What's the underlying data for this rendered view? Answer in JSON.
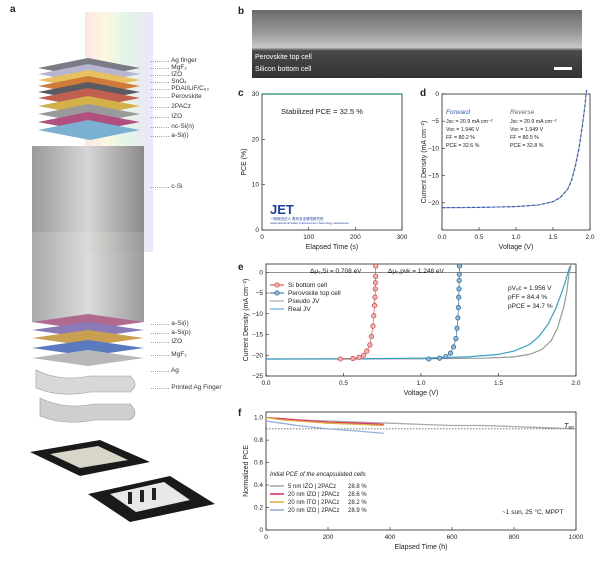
{
  "panel_letters": {
    "a": "a",
    "b": "b",
    "c": "c",
    "d": "d",
    "e": "e",
    "f": "f"
  },
  "stack_labels": [
    "Ag finger",
    "MgF₂",
    "IZO",
    "SnOₓ",
    "PDAI/LiF/C₆₀",
    "Perovskite",
    "2PACz",
    "IZO",
    "nc-Si(n)",
    "a-Si(i)",
    "c-Si",
    "a-Si(i)",
    "a-Si(p)",
    "IZO",
    "MgF₂",
    "Ag",
    "Printed Ag Finger"
  ],
  "sem": {
    "top_label": "Perovskite top cell",
    "bottom_label": "Silicon bottom cell"
  },
  "panel_c": {
    "annotation": "Stabilized PCE = 32.5 %",
    "logo_text": "JET",
    "logo_subtext": "一般財団法人 電気安全環境研究所",
    "logo_subtext2": "Japan Electrical Safety & Environment Technology Laboratories",
    "chart_data": {
      "type": "line",
      "xlabel": "Elapsed Time (s)",
      "ylabel": "PCE (%)",
      "xlim": [
        0,
        300
      ],
      "ylim": [
        0,
        30
      ],
      "xticks": [
        0,
        100,
        200,
        300
      ],
      "yticks": [
        0,
        10,
        20,
        30
      ],
      "series": [
        {
          "color": "#1a8a6a",
          "x": [
            0,
            20,
            40,
            60,
            80,
            100,
            120,
            140,
            160,
            180,
            200,
            220,
            240,
            260,
            280,
            300
          ],
          "values": [
            32.4,
            32.5,
            32.4,
            32.5,
            32.6,
            32.5,
            32.5,
            32.4,
            32.5,
            32.5,
            32.6,
            32.5,
            32.4,
            32.5,
            32.5,
            32.5
          ]
        }
      ]
    }
  },
  "panel_d": {
    "forward": {
      "title": "Forward",
      "jsc": "Jsc   = 20.9 mA cm⁻²",
      "voc": "Voc   = 1.946 V",
      "ff": "FF     = 80.2 %",
      "pce": "PCE  = 32.6 %"
    },
    "reverse": {
      "title": "Reverse",
      "jsc": "Jsc   = 20.9 mA cm⁻²",
      "voc": "Voc   = 1.949 V",
      "ff": "FF     = 80.5 %",
      "pce": "PCE  = 32.8 %"
    },
    "chart_data": {
      "type": "line",
      "xlabel": "Voltage (V)",
      "ylabel": "Current Density (mA cm⁻²)",
      "xlim": [
        0,
        2.0
      ],
      "ylim": [
        -25,
        0
      ],
      "xticks": [
        0,
        0.5,
        1.0,
        1.5,
        2.0
      ],
      "xtick_labels": [
        "0.0",
        "0.5",
        "1.0",
        "1.5",
        "2.0"
      ],
      "yticks": [
        0,
        -5,
        -10,
        -15,
        -20
      ],
      "ytick_labels": [
        "0",
        "−5",
        "−10",
        "−15",
        "−20"
      ],
      "series": [
        {
          "color": "#2f5fb0",
          "dash": "3,2",
          "x": [
            0,
            0.5,
            1.0,
            1.3,
            1.5,
            1.6,
            1.7,
            1.75,
            1.8,
            1.85,
            1.9,
            1.93,
            1.946,
            1.96
          ],
          "values": [
            -20.9,
            -20.85,
            -20.7,
            -20.4,
            -19.8,
            -19.0,
            -17.5,
            -16.0,
            -13.5,
            -10.2,
            -5.6,
            -2.4,
            0,
            1.5
          ]
        },
        {
          "color": "#9a9ad0",
          "dash": "",
          "x": [
            0,
            0.5,
            1.0,
            1.3,
            1.5,
            1.6,
            1.7,
            1.75,
            1.8,
            1.85,
            1.9,
            1.93,
            1.949,
            1.965
          ],
          "values": [
            -20.9,
            -20.85,
            -20.7,
            -20.4,
            -19.8,
            -19.0,
            -17.4,
            -15.8,
            -13.2,
            -9.9,
            -5.4,
            -2.3,
            0,
            1.4
          ]
        }
      ]
    }
  },
  "panel_e": {
    "dv_si": "Δμₑ,Si = 0.708 eV",
    "dv_pk": "Δμₑ,pvk = 1.248 eV",
    "pvoc": "pVₒᴄ = 1.956 V",
    "pff": "pFF   = 84.4 %",
    "ppce": "pPCE = 34.7 %",
    "legend": [
      "Si bottom cell",
      "Perovskite top cell",
      "Pseudo JV",
      "Real JV"
    ],
    "chart_data": {
      "type": "line",
      "xlabel": "Voltage (V)",
      "ylabel": "Current Density (mA cm⁻²)",
      "xlim": [
        0,
        2.0
      ],
      "ylim": [
        -25,
        2
      ],
      "xticks": [
        0,
        0.5,
        1.0,
        1.5,
        2.0
      ],
      "xtick_labels": [
        "0.0",
        "0.5",
        "1.0",
        "1.5",
        "2.0"
      ],
      "yticks": [
        0,
        -5,
        -10,
        -15,
        -20,
        -25
      ],
      "ytick_labels": [
        "0",
        "−5",
        "−10",
        "−15",
        "−20",
        "−25"
      ],
      "si_points": {
        "x": [
          0.48,
          0.56,
          0.6,
          0.63,
          0.65,
          0.67,
          0.68,
          0.69,
          0.695,
          0.7,
          0.703,
          0.705,
          0.706,
          0.707,
          0.708
        ],
        "values": [
          -20.9,
          -20.8,
          -20.5,
          -20.0,
          -19.0,
          -17.5,
          -15.5,
          -13.0,
          -10.5,
          -8.0,
          -6.0,
          -4.0,
          -2.5,
          -1.0,
          1.5
        ]
      },
      "pk_points": {
        "x": [
          1.05,
          1.12,
          1.16,
          1.19,
          1.21,
          1.225,
          1.232,
          1.238,
          1.241,
          1.243,
          1.245,
          1.246,
          1.247,
          1.248
        ],
        "values": [
          -20.9,
          -20.7,
          -20.3,
          -19.5,
          -18.0,
          -16.0,
          -13.5,
          -11.0,
          -8.5,
          -6.0,
          -4.0,
          -2.0,
          -0.5,
          1.5
        ]
      },
      "pseudo": {
        "color": "#999999",
        "x": [
          0,
          0.5,
          1.0,
          1.4,
          1.6,
          1.7,
          1.78,
          1.84,
          1.88,
          1.92,
          1.94,
          1.956,
          1.97
        ],
        "values": [
          -20.9,
          -20.9,
          -20.85,
          -20.7,
          -20.4,
          -19.8,
          -18.6,
          -16.5,
          -13.5,
          -8.5,
          -4.8,
          0,
          2
        ]
      },
      "real": {
        "color": "#3aa0c8",
        "x": [
          0,
          0.5,
          1.0,
          1.3,
          1.5,
          1.6,
          1.7,
          1.76,
          1.82,
          1.87,
          1.91,
          1.935,
          1.949,
          1.96
        ],
        "values": [
          -20.9,
          -20.85,
          -20.7,
          -20.4,
          -19.8,
          -19.0,
          -17.4,
          -15.5,
          -12.5,
          -8.6,
          -4.6,
          -1.8,
          0,
          1.5
        ]
      }
    }
  },
  "panel_f": {
    "t90": "T₉₀",
    "note": "~1 sun, 25 °C, MPPT",
    "legend_title": "Initial PCE of the encapsulated cells",
    "legend": [
      {
        "label": "5 nm IZO | 2PACz",
        "pce": "28.8 %",
        "color": "#aaaaaa"
      },
      {
        "label": "20 nm IZO | 2PACz",
        "pce": "28.6 %",
        "color": "#d9356a"
      },
      {
        "label": "20 nm ITO | 2PACz",
        "pce": "28.2 %",
        "color": "#e0b040"
      },
      {
        "label": "20 nm IZO | 2PACz",
        "pce": "28.9 %",
        "color": "#8fb0d8"
      }
    ],
    "chart_data": {
      "type": "line",
      "xlabel": "Elapsed Time (h)",
      "ylabel": "Normalized PCE",
      "xlim": [
        0,
        1000
      ],
      "ylim": [
        0,
        1.05
      ],
      "xticks": [
        0,
        200,
        400,
        600,
        800,
        1000
      ],
      "yticks": [
        0,
        0.2,
        0.4,
        0.6,
        0.8,
        1.0
      ],
      "ytick_labels": [
        "0",
        "0.2",
        "0.4",
        "0.6",
        "0.8",
        "1.0"
      ],
      "t90_level": 0.9,
      "series": [
        {
          "name": "5 nm IZO | 2PACz",
          "color": "#aaaaaa",
          "x": [
            0,
            50,
            100,
            200,
            300,
            400,
            500,
            600,
            700,
            800,
            900,
            1000
          ],
          "values": [
            1.0,
            0.99,
            0.98,
            0.97,
            0.96,
            0.95,
            0.94,
            0.93,
            0.93,
            0.92,
            0.91,
            0.9
          ]
        },
        {
          "name": "20 nm IZO | 2PACz",
          "color": "#d9356a",
          "x": [
            0,
            50,
            100,
            200,
            300,
            380
          ],
          "values": [
            1.0,
            0.99,
            0.98,
            0.96,
            0.95,
            0.94
          ]
        },
        {
          "name": "20 nm ITO | 2PACz",
          "color": "#e0b040",
          "x": [
            0,
            50,
            100,
            200,
            300,
            380
          ],
          "values": [
            1.0,
            0.98,
            0.97,
            0.95,
            0.94,
            0.93
          ]
        },
        {
          "name": "20 nm IZO | 2PACz",
          "color": "#8fb0d8",
          "x": [
            0,
            50,
            100,
            200,
            300,
            380
          ],
          "values": [
            0.97,
            0.95,
            0.93,
            0.9,
            0.88,
            0.86
          ]
        }
      ]
    }
  }
}
